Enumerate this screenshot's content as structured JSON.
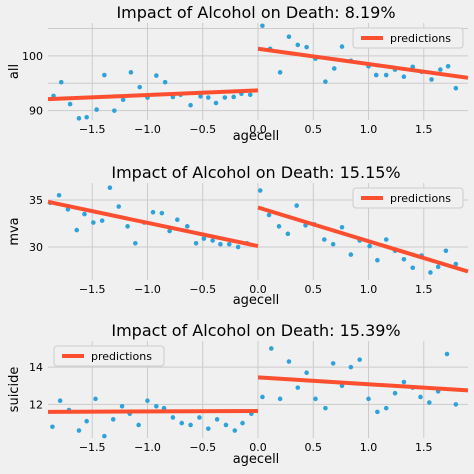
{
  "colors": {
    "background": "#f0f0f0",
    "grid": "#cbcbcb",
    "points": "#30a2da",
    "line": "#fc4f30",
    "legend_bg": "#f0f0f0",
    "legend_border": "#cccccc"
  },
  "chart_data": [
    {
      "type": "scatter",
      "title": "Impact of Alcohol on Death: 8.19%",
      "xlabel": "agecell",
      "ylabel": "all",
      "xlim": [
        -1.9,
        1.9
      ],
      "ylim": [
        88.3,
        106
      ],
      "xticks": [
        -1.5,
        -1.0,
        -0.5,
        0.0,
        0.5,
        1.0,
        1.5
      ],
      "xtick_labels": [
        "−1.5",
        "−1.0",
        "−0.5",
        "0.0",
        "0.5",
        "1.0",
        "1.5"
      ],
      "yticks": [
        90,
        95,
        100,
        105
      ],
      "ytick_labels": [
        "90",
        "",
        "100",
        ""
      ],
      "grid": true,
      "legend": {
        "label": "predictions",
        "position": "upper right"
      },
      "points": [
        [
          -1.85,
          92.7
        ],
        [
          -1.78,
          95.2
        ],
        [
          -1.7,
          91.2
        ],
        [
          -1.62,
          88.6
        ],
        [
          -1.55,
          88.8
        ],
        [
          -1.46,
          90.2
        ],
        [
          -1.39,
          96.5
        ],
        [
          -1.3,
          90.0
        ],
        [
          -1.22,
          92.0
        ],
        [
          -1.15,
          97.0
        ],
        [
          -1.07,
          94.3
        ],
        [
          -1.0,
          92.4
        ],
        [
          -0.92,
          96.4
        ],
        [
          -0.84,
          95.2
        ],
        [
          -0.77,
          92.5
        ],
        [
          -0.7,
          92.9
        ],
        [
          -0.61,
          91.0
        ],
        [
          -0.52,
          92.6
        ],
        [
          -0.45,
          92.4
        ],
        [
          -0.38,
          91.4
        ],
        [
          -0.3,
          92.4
        ],
        [
          -0.22,
          92.5
        ],
        [
          -0.15,
          93.1
        ],
        [
          -0.07,
          92.9
        ],
        [
          0.04,
          105.5
        ],
        [
          0.11,
          101.3
        ],
        [
          0.2,
          97.0
        ],
        [
          0.28,
          103.5
        ],
        [
          0.36,
          102.0
        ],
        [
          0.44,
          101.6
        ],
        [
          0.52,
          99.5
        ],
        [
          0.61,
          95.3
        ],
        [
          0.69,
          97.7
        ],
        [
          0.76,
          101.7
        ],
        [
          0.84,
          99.1
        ],
        [
          0.92,
          101.8
        ],
        [
          1.0,
          98.1
        ],
        [
          1.07,
          96.5
        ],
        [
          1.16,
          96.5
        ],
        [
          1.24,
          97.5
        ],
        [
          1.32,
          96.2
        ],
        [
          1.4,
          98.0
        ],
        [
          1.48,
          97.1
        ],
        [
          1.57,
          95.7
        ],
        [
          1.65,
          97.5
        ],
        [
          1.72,
          98.1
        ],
        [
          1.79,
          94.1
        ]
      ],
      "predictions": [
        {
          "x": [
            -1.9,
            -0.0
          ],
          "y": [
            92.1,
            93.7
          ]
        },
        {
          "x": [
            0.0,
            1.9
          ],
          "y": [
            101.3,
            96.0
          ]
        }
      ]
    },
    {
      "type": "scatter",
      "title": "Impact of Alcohol on Death: 15.15%",
      "xlabel": "agecell",
      "ylabel": "mva",
      "xlim": [
        -1.9,
        1.9
      ],
      "ylim": [
        26.5,
        36.8
      ],
      "xticks": [
        -1.5,
        -1.0,
        -0.5,
        0.0,
        0.5,
        1.0,
        1.5
      ],
      "xtick_labels": [
        "−1.5",
        "−1.0",
        "−0.5",
        "0.0",
        "0.5",
        "1.0",
        "1.5"
      ],
      "yticks": [
        30,
        35
      ],
      "ytick_labels": [
        "30",
        "35"
      ],
      "grid": true,
      "legend": {
        "label": "predictions",
        "position": "upper right"
      },
      "points": [
        [
          -1.88,
          34.7
        ],
        [
          -1.8,
          35.5
        ],
        [
          -1.72,
          34.0
        ],
        [
          -1.64,
          31.8
        ],
        [
          -1.57,
          33.5
        ],
        [
          -1.49,
          32.6
        ],
        [
          -1.41,
          32.8
        ],
        [
          -1.34,
          36.3
        ],
        [
          -1.26,
          34.3
        ],
        [
          -1.18,
          32.2
        ],
        [
          -1.11,
          30.4
        ],
        [
          -1.03,
          32.6
        ],
        [
          -0.95,
          33.7
        ],
        [
          -0.87,
          33.6
        ],
        [
          -0.8,
          31.7
        ],
        [
          -0.73,
          32.9
        ],
        [
          -0.64,
          32.2
        ],
        [
          -0.56,
          30.4
        ],
        [
          -0.49,
          30.9
        ],
        [
          -0.41,
          30.7
        ],
        [
          -0.34,
          30.3
        ],
        [
          -0.26,
          30.3
        ],
        [
          -0.18,
          30.0
        ],
        [
          -0.1,
          30.4
        ],
        [
          0.02,
          36.0
        ],
        [
          0.1,
          33.4
        ],
        [
          0.19,
          32.2
        ],
        [
          0.27,
          31.4
        ],
        [
          0.35,
          34.4
        ],
        [
          0.43,
          32.3
        ],
        [
          0.51,
          32.4
        ],
        [
          0.6,
          30.8
        ],
        [
          0.68,
          30.3
        ],
        [
          0.76,
          32.1
        ],
        [
          0.84,
          29.2
        ],
        [
          0.92,
          30.7
        ],
        [
          1.01,
          30.1
        ],
        [
          1.08,
          28.6
        ],
        [
          1.16,
          30.8
        ],
        [
          1.24,
          29.6
        ],
        [
          1.32,
          28.7
        ],
        [
          1.4,
          27.8
        ],
        [
          1.48,
          29.1
        ],
        [
          1.56,
          27.3
        ],
        [
          1.63,
          27.9
        ],
        [
          1.7,
          29.6
        ],
        [
          1.79,
          28.2
        ]
      ],
      "predictions": [
        {
          "x": [
            -1.9,
            -0.0
          ],
          "y": [
            34.8,
            30.1
          ]
        },
        {
          "x": [
            0.0,
            1.9
          ],
          "y": [
            34.2,
            27.4
          ]
        }
      ]
    },
    {
      "type": "scatter",
      "title": "Impact of Alcohol on Death: 15.39%",
      "xlabel": "agecell",
      "ylabel": "suicide",
      "xlim": [
        -1.9,
        1.9
      ],
      "ylim": [
        10.2,
        15.4
      ],
      "xticks": [
        -1.5,
        -1.0,
        -0.5,
        0.0,
        0.5,
        1.0,
        1.5
      ],
      "xtick_labels": [
        "−1.5",
        "−1.0",
        "−0.5",
        "0.0",
        "0.5",
        "1.0",
        "1.5"
      ],
      "yticks": [
        12,
        14
      ],
      "ytick_labels": [
        "12",
        "14"
      ],
      "grid": true,
      "legend": {
        "label": "predictions",
        "position": "upper left"
      },
      "points": [
        [
          -1.86,
          10.8
        ],
        [
          -1.79,
          12.2
        ],
        [
          -1.71,
          11.7
        ],
        [
          -1.62,
          10.6
        ],
        [
          -1.55,
          11.1
        ],
        [
          -1.47,
          12.3
        ],
        [
          -1.39,
          10.3
        ],
        [
          -1.31,
          11.2
        ],
        [
          -1.23,
          11.9
        ],
        [
          -1.16,
          11.5
        ],
        [
          -1.08,
          10.9
        ],
        [
          -1.0,
          12.2
        ],
        [
          -0.92,
          11.9
        ],
        [
          -0.85,
          11.8
        ],
        [
          -0.77,
          11.3
        ],
        [
          -0.69,
          11.0
        ],
        [
          -0.61,
          10.9
        ],
        [
          -0.53,
          11.3
        ],
        [
          -0.45,
          10.7
        ],
        [
          -0.37,
          11.2
        ],
        [
          -0.29,
          10.9
        ],
        [
          -0.21,
          10.6
        ],
        [
          -0.14,
          11.0
        ],
        [
          -0.06,
          11.5
        ],
        [
          0.04,
          12.4
        ],
        [
          0.12,
          15.0
        ],
        [
          0.2,
          12.3
        ],
        [
          0.28,
          14.3
        ],
        [
          0.36,
          12.9
        ],
        [
          0.44,
          13.7
        ],
        [
          0.52,
          12.3
        ],
        [
          0.61,
          11.8
        ],
        [
          0.68,
          14.2
        ],
        [
          0.76,
          13.0
        ],
        [
          0.84,
          14.0
        ],
        [
          0.92,
          14.4
        ],
        [
          1.0,
          12.3
        ],
        [
          1.08,
          11.6
        ],
        [
          1.16,
          11.8
        ],
        [
          1.24,
          12.6
        ],
        [
          1.32,
          13.2
        ],
        [
          1.4,
          12.9
        ],
        [
          1.47,
          12.4
        ],
        [
          1.55,
          12.1
        ],
        [
          1.63,
          12.7
        ],
        [
          1.71,
          14.7
        ],
        [
          1.79,
          12.0
        ]
      ],
      "predictions": [
        {
          "x": [
            -1.9,
            -0.0
          ],
          "y": [
            11.6,
            11.65
          ]
        },
        {
          "x": [
            0.0,
            1.9
          ],
          "y": [
            13.45,
            12.75
          ]
        }
      ]
    }
  ]
}
